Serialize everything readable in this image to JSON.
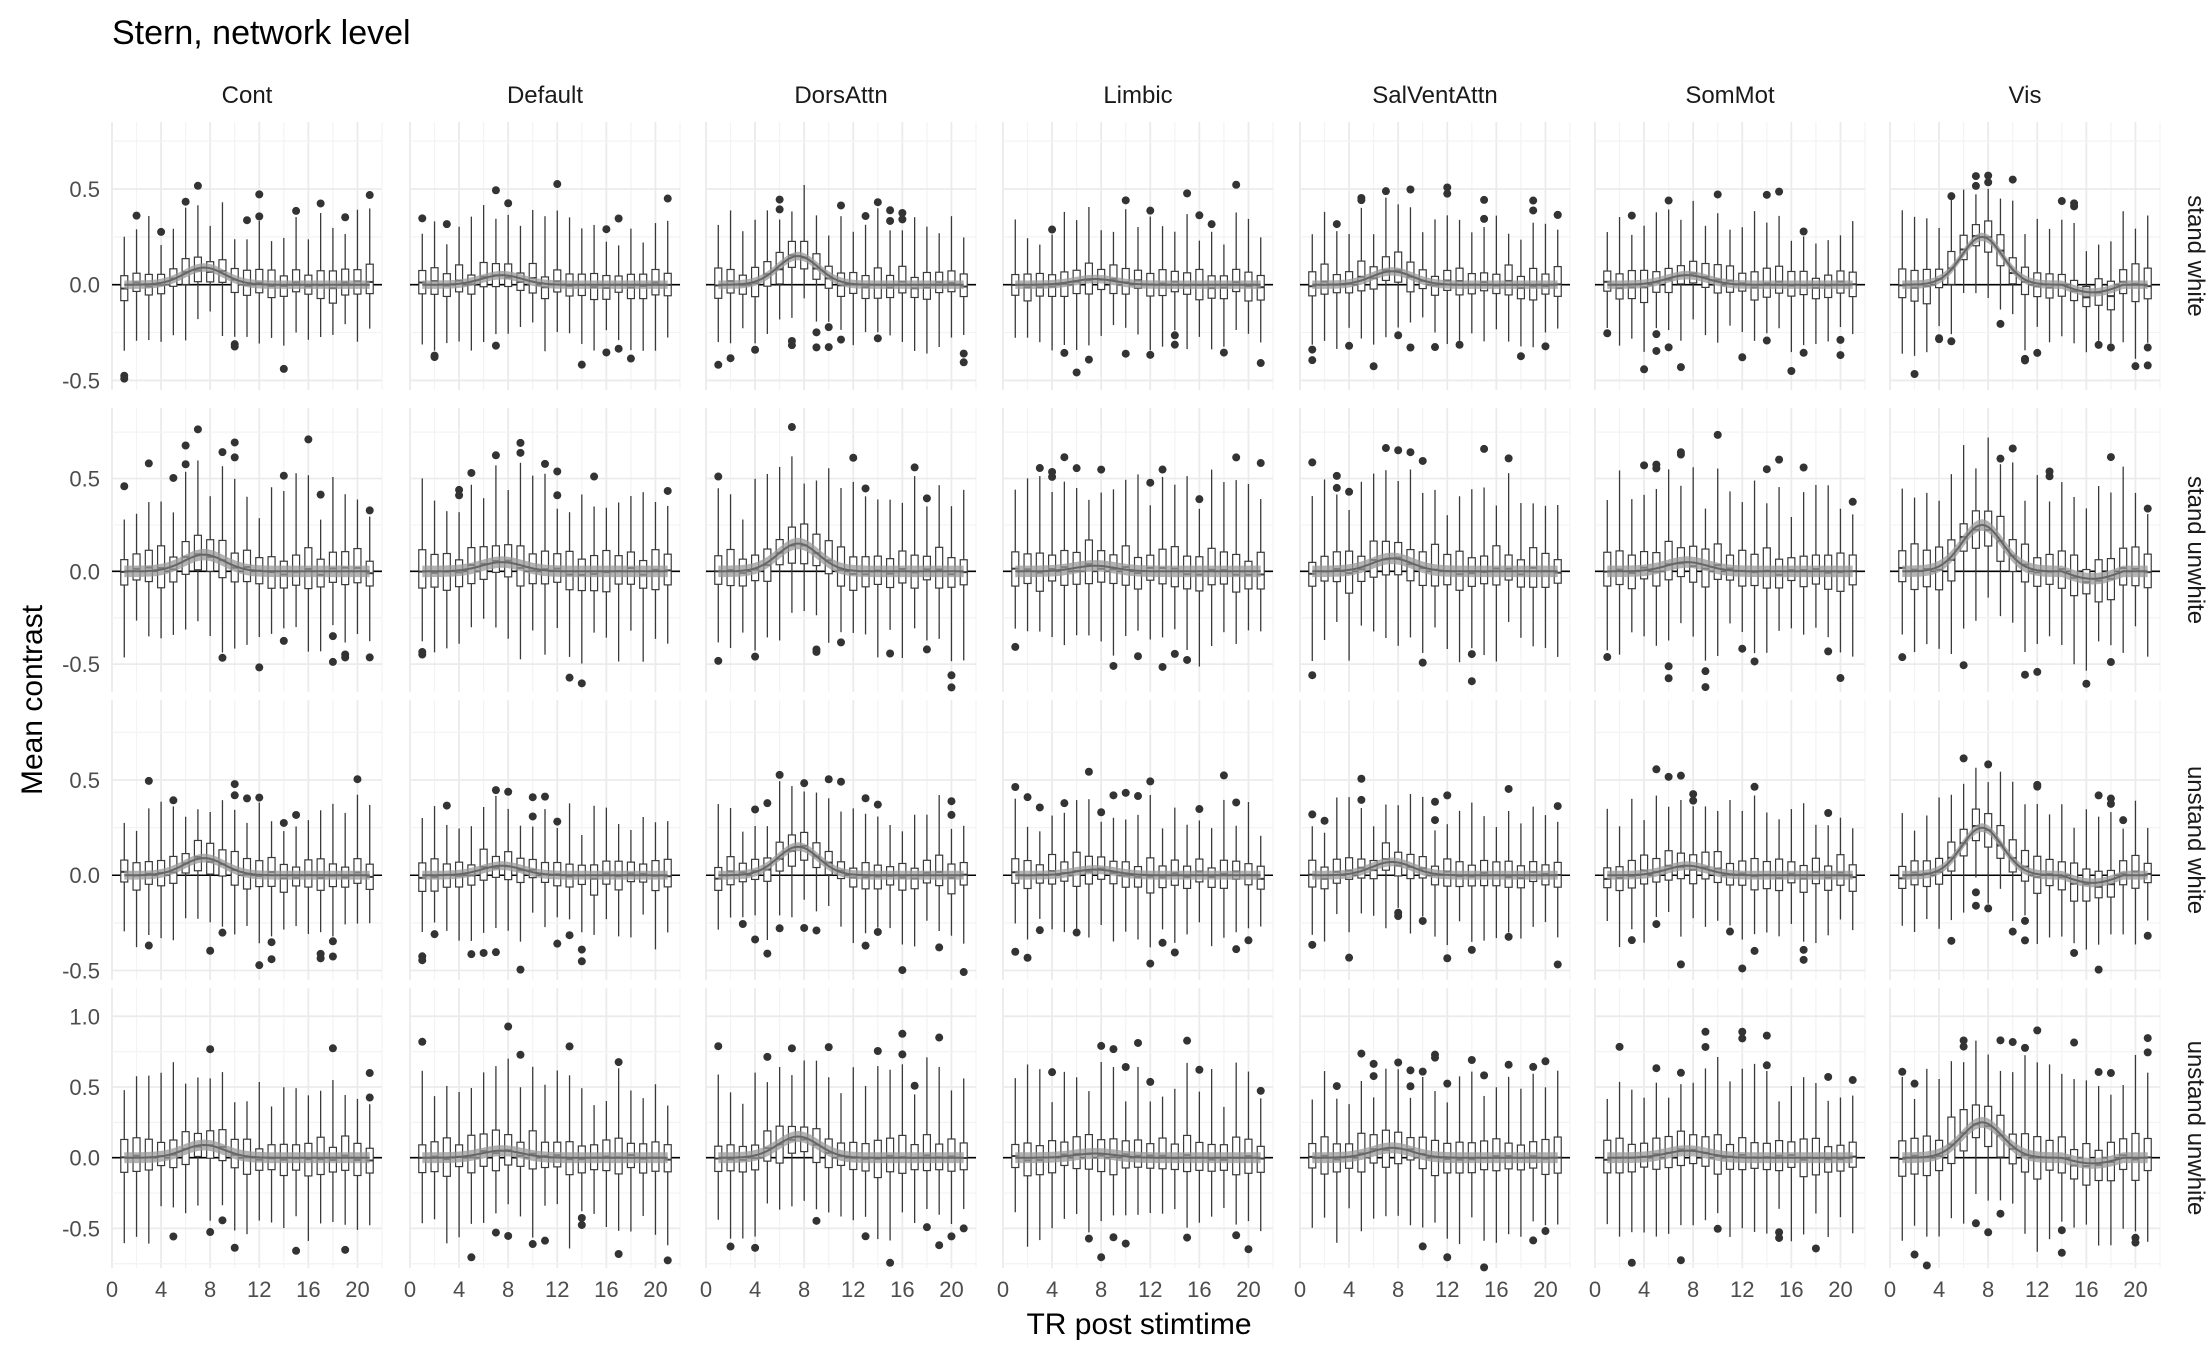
{
  "chart_data": {
    "type": "boxplot",
    "title": "Stern, network level",
    "xlabel": "TR post stimtime",
    "ylabel": "Mean contrast",
    "columns": [
      "Cont",
      "Default",
      "DorsAttn",
      "Limbic",
      "SalVentAttn",
      "SomMot",
      "Vis"
    ],
    "rows": [
      "stand white",
      "stand unwhite",
      "unstand white",
      "unstand unwhite"
    ],
    "x": [
      1,
      2,
      3,
      4,
      5,
      6,
      7,
      8,
      9,
      10,
      11,
      12,
      13,
      14,
      15,
      16,
      17,
      18,
      19,
      20,
      21
    ],
    "x_ticks": [
      0,
      4,
      8,
      12,
      16,
      20
    ],
    "xlim": [
      0,
      22
    ],
    "row_ylims": [
      [
        -0.55,
        0.85
      ],
      [
        -0.65,
        0.88
      ],
      [
        -0.55,
        0.92
      ],
      [
        -0.78,
        1.2
      ]
    ],
    "row_yticks": [
      [
        -0.5,
        0.0,
        0.5
      ],
      [
        -0.5,
        0.0,
        0.5
      ],
      [
        -0.5,
        0.0,
        0.5
      ],
      [
        -0.5,
        0.0,
        0.5,
        1.0
      ]
    ],
    "row_spread": [
      1.0,
      1.4,
      1.05,
      1.75
    ],
    "peak": {
      "Cont": 0.09,
      "Default": 0.05,
      "DorsAttn": 0.15,
      "Limbic": 0.03,
      "SalVentAttn": 0.07,
      "SomMot": 0.05,
      "Vis": 0.25
    },
    "peak_tr": 7.5,
    "summary_series": "median smooth with ribbon",
    "grid": true,
    "legend": "none",
    "colors": {
      "box_outline": "#3a3a3a",
      "whisker": "#3a3a3a",
      "outlier": "#333333",
      "median_line": "#666666",
      "ribbon": "#9a9a9a",
      "zero_line": "#000000",
      "grid": "#ebebeb",
      "text": "#4d4d4d",
      "title": "#000000"
    }
  }
}
